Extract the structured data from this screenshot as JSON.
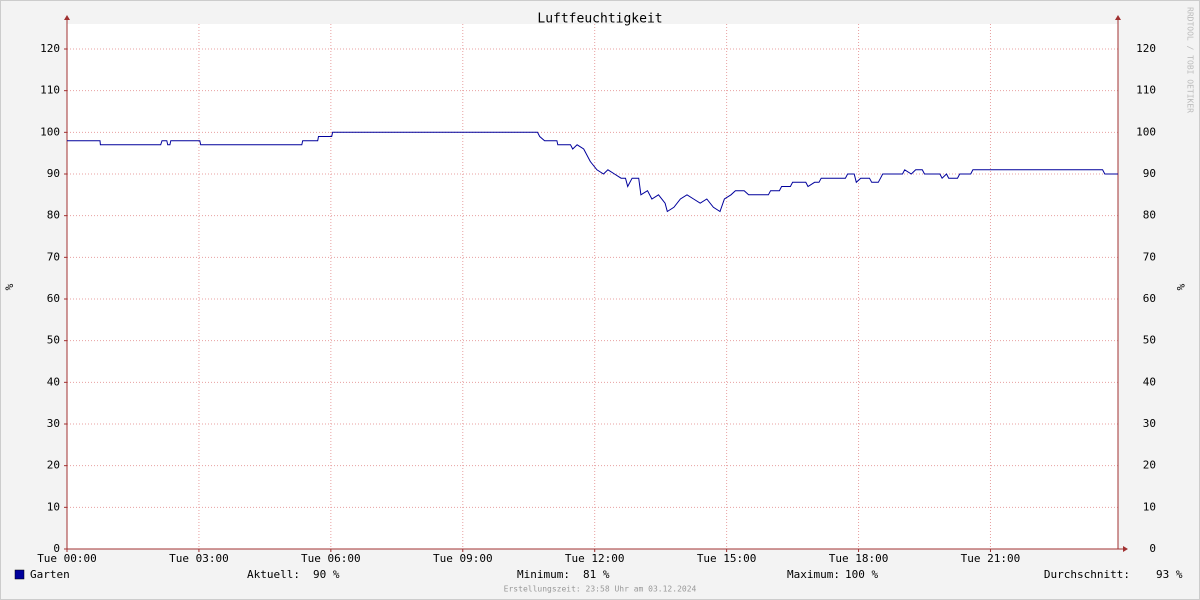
{
  "chart_data": {
    "type": "line",
    "title": "Luftfeuchtigkeit",
    "y_label": "%",
    "side_text": "RRDTOOL / TOBI OETIKER",
    "footer": "Erstellungszeit: 23:58 Uhr am 03.12.2024",
    "xlim": [
      0,
      23.9
    ],
    "ylim": [
      0,
      126
    ],
    "xticks": [
      {
        "value": 0,
        "label": "Tue 00:00"
      },
      {
        "value": 3,
        "label": "Tue 03:00"
      },
      {
        "value": 6,
        "label": "Tue 06:00"
      },
      {
        "value": 9,
        "label": "Tue 09:00"
      },
      {
        "value": 12,
        "label": "Tue 12:00"
      },
      {
        "value": 15,
        "label": "Tue 15:00"
      },
      {
        "value": 18,
        "label": "Tue 18:00"
      },
      {
        "value": 21,
        "label": "Tue 21:00"
      }
    ],
    "yticks": [
      0,
      10,
      20,
      30,
      40,
      50,
      60,
      70,
      80,
      90,
      100,
      110,
      120
    ],
    "grid": true,
    "series": [
      {
        "name": "Garten",
        "color": "#00009c",
        "x": [
          0,
          0.75,
          0.76,
          2.13,
          2.16,
          2.27,
          2.29,
          2.34,
          2.36,
          3.02,
          3.04,
          5.34,
          5.36,
          5.7,
          5.72,
          6.02,
          6.04,
          10.7,
          10.75,
          10.86,
          11.14,
          11.16,
          11.45,
          11.5,
          11.6,
          11.75,
          11.9,
          12.05,
          12.2,
          12.3,
          12.45,
          12.6,
          12.7,
          12.75,
          12.85,
          13.0,
          13.05,
          13.2,
          13.3,
          13.45,
          13.6,
          13.65,
          13.8,
          13.95,
          14.1,
          14.25,
          14.4,
          14.55,
          14.7,
          14.85,
          14.95,
          15.1,
          15.2,
          15.4,
          15.5,
          15.95,
          16.0,
          16.2,
          16.25,
          16.45,
          16.5,
          16.8,
          16.85,
          17.0,
          17.1,
          17.15,
          17.7,
          17.75,
          17.9,
          17.95,
          18.05,
          18.25,
          18.3,
          18.45,
          18.5,
          18.55,
          19.0,
          19.05,
          19.2,
          19.3,
          19.45,
          19.5,
          19.85,
          19.9,
          20.0,
          20.05,
          20.25,
          20.3,
          20.55,
          20.6,
          23.55,
          23.6,
          23.9
        ],
        "values": [
          98,
          98,
          97,
          97,
          98,
          98,
          97,
          97,
          98,
          98,
          97,
          97,
          98,
          98,
          99,
          99,
          100,
          100,
          99,
          98,
          98,
          97,
          97,
          96,
          97,
          96,
          93,
          91,
          90,
          91,
          90,
          89,
          89,
          87,
          89,
          89,
          85,
          86,
          84,
          85,
          83,
          81,
          82,
          84,
          85,
          84,
          83,
          84,
          82,
          81,
          84,
          85,
          86,
          86,
          85,
          85,
          86,
          86,
          87,
          87,
          88,
          88,
          87,
          88,
          88,
          89,
          89,
          90,
          90,
          88,
          89,
          89,
          88,
          88,
          89,
          90,
          90,
          91,
          90,
          91,
          91,
          90,
          90,
          89,
          90,
          89,
          89,
          90,
          90,
          91,
          91,
          90,
          90
        ]
      }
    ],
    "stats": {
      "labels": [
        "Aktuell:",
        "Minimum:",
        "Maximum:",
        "Durchschnitt:"
      ],
      "values": [
        90,
        81,
        100,
        93
      ],
      "value_labels": [
        "90 %",
        "81 %",
        "100 %",
        "93 %"
      ]
    }
  }
}
